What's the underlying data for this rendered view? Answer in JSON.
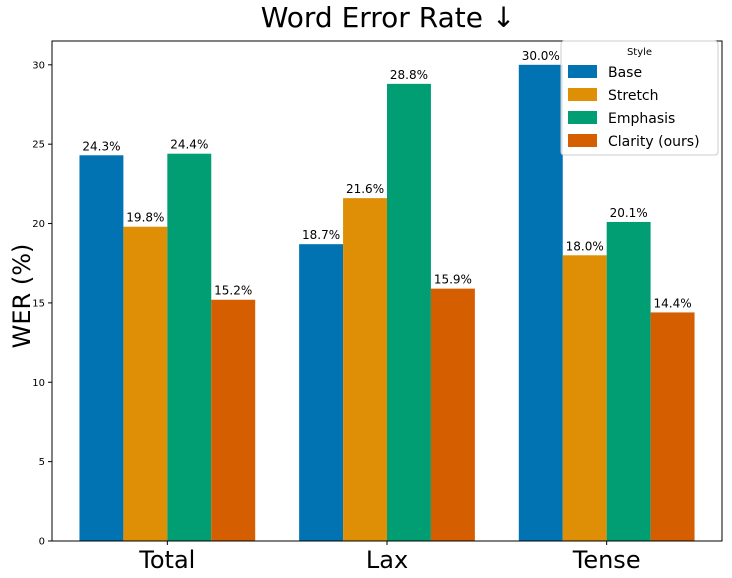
{
  "chart_data": {
    "type": "bar",
    "title": "Word Error Rate ↓",
    "xlabel": "",
    "ylabel": "WER (%)",
    "categories": [
      "Total",
      "Lax",
      "Tense"
    ],
    "ylim": [
      0,
      31.5
    ],
    "yticks": [
      0,
      5,
      10,
      15,
      20,
      25,
      30
    ],
    "grid": false,
    "legend": {
      "title": "Style",
      "placement": "upper-right"
    },
    "series": [
      {
        "name": "Base",
        "color": "#0173b2",
        "values": [
          24.3,
          18.7,
          30.0
        ],
        "labels": [
          "24.3%",
          "18.7%",
          "30.0%"
        ]
      },
      {
        "name": "Stretch",
        "color": "#de8f05",
        "values": [
          19.8,
          21.6,
          18.0
        ],
        "labels": [
          "19.8%",
          "21.6%",
          "18.0%"
        ]
      },
      {
        "name": "Emphasis",
        "color": "#029e73",
        "values": [
          24.4,
          28.8,
          20.1
        ],
        "labels": [
          "24.4%",
          "28.8%",
          "20.1%"
        ]
      },
      {
        "name": "Clarity (ours)",
        "color": "#d55e00",
        "values": [
          15.2,
          15.9,
          14.4
        ],
        "labels": [
          "15.2%",
          "15.9%",
          "14.4%"
        ]
      }
    ]
  }
}
